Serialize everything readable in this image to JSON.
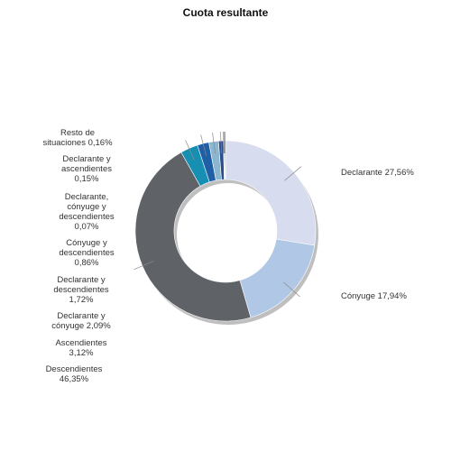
{
  "chart_data": {
    "type": "pie",
    "donut": true,
    "title": "Cuota resultante",
    "slices": [
      {
        "label": "Declarante",
        "value": 27.56,
        "value_text": "27,56%",
        "color": "#d7dcee"
      },
      {
        "label": "Cónyuge",
        "value": 17.94,
        "value_text": "17,94%",
        "color": "#b0c8e6"
      },
      {
        "label": "Descendientes",
        "value": 46.35,
        "value_text": "46,35%",
        "color": "#5f6368"
      },
      {
        "label": "Ascendientes",
        "value": 3.12,
        "value_text": "3,12%",
        "color": "#168fb2"
      },
      {
        "label": "Declarante y cónyuge",
        "value": 2.09,
        "value_text": "2,09%",
        "color": "#1f5fa6"
      },
      {
        "label": "Declarante y descendientes",
        "value": 1.72,
        "value_text": "1,72%",
        "color": "#8bb6cf"
      },
      {
        "label": "Cónyuge y descendientes",
        "value": 0.86,
        "value_text": "0,86%",
        "color": "#2b4f8c"
      },
      {
        "label": "Declarante, cónyuge y descendientes",
        "value": 0.07,
        "value_text": "0,07%",
        "color": "#9ab9d9"
      },
      {
        "label": "Declarante y ascendientes",
        "value": 0.15,
        "value_text": "0,15%",
        "color": "#4a90c0"
      },
      {
        "label": "Resto de situaciones",
        "value": 0.16,
        "value_text": "0,16%",
        "color": "#1e3f78"
      }
    ],
    "labels_printed": [
      [
        "Declarante 27,56%"
      ],
      [
        "Cónyuge 17,94%"
      ],
      [
        "Descendientes",
        "46,35%"
      ],
      [
        "Ascendientes",
        "3,12%"
      ],
      [
        "Declarante y",
        "cónyuge 2,09%"
      ],
      [
        "Declarante y",
        "descendientes",
        "1,72%"
      ],
      [
        "Cónyuge y",
        "descendientes",
        "0,86%"
      ],
      [
        "Declarante,",
        "cónyuge y",
        "descendientes",
        "0,07%"
      ],
      [
        "Declarante y",
        "ascendientes",
        "0,15%"
      ],
      [
        "Resto de",
        "situaciones 0,16%"
      ]
    ]
  }
}
